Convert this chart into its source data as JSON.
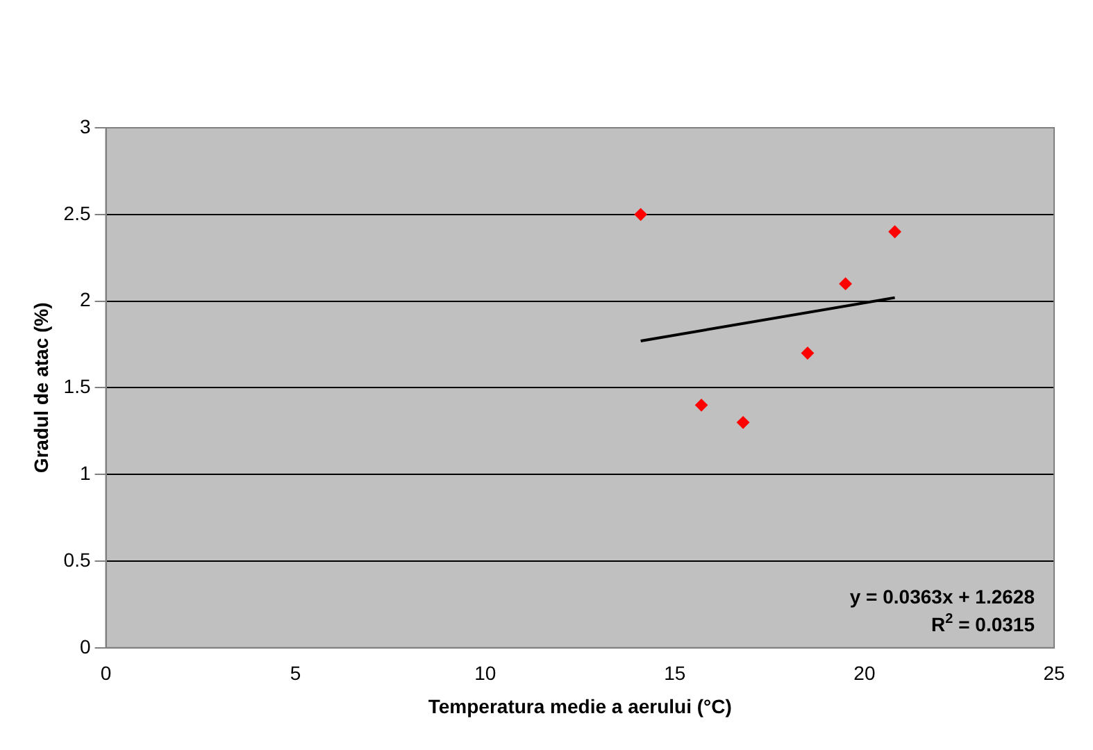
{
  "chart_data": {
    "type": "scatter",
    "xlabel": "Temperatura medie a aerului (°C)",
    "ylabel": "Gradul de atac (%)",
    "xlim": [
      0,
      25
    ],
    "xticks": [
      0,
      5,
      10,
      15,
      20,
      25
    ],
    "ylim": [
      0,
      3
    ],
    "yticks": [
      0,
      0.5,
      1,
      1.5,
      2,
      2.5,
      3
    ],
    "grid": "y",
    "legend": false,
    "series": [
      {
        "marker": "diamond",
        "color": "#ff0000",
        "x": [
          14.1,
          15.7,
          16.8,
          18.5,
          19.5,
          20.8
        ],
        "values": [
          2.5,
          1.4,
          1.3,
          1.7,
          2.1,
          2.4
        ]
      },
      {
        "type": "line",
        "marker": "none",
        "color": "#000000",
        "x": [
          14.1,
          20.8
        ],
        "values": [
          1.77,
          2.02
        ]
      }
    ],
    "annotations": [
      "y = 0.0363x + 1.2628",
      "R$^{2}$ = 0.0315"
    ]
  }
}
